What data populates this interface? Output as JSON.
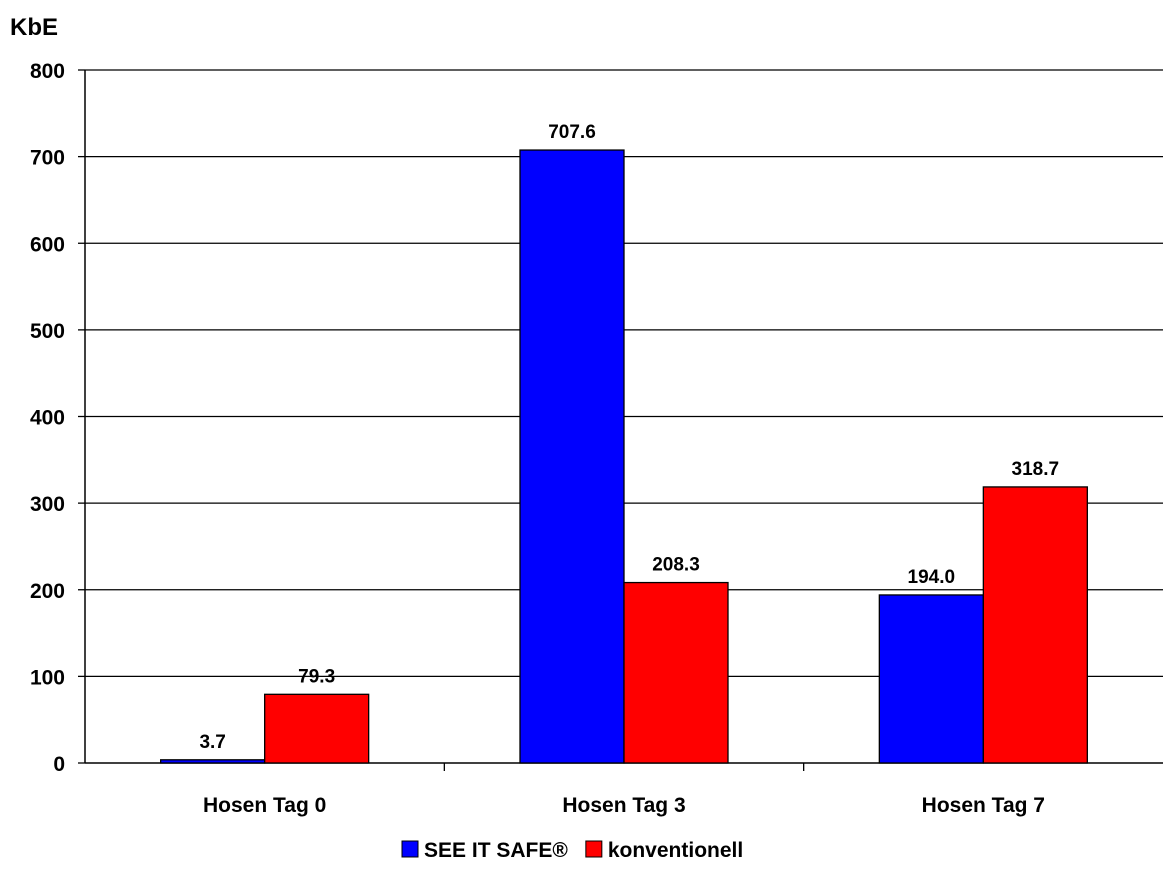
{
  "chart_data": {
    "type": "bar",
    "ylabel": "KbE",
    "categories": [
      "Hosen Tag 0",
      "Hosen Tag 3",
      "Hosen Tag 7"
    ],
    "series": [
      {
        "name": "SEE IT SAFE®",
        "values": [
          3.7,
          707.6,
          194.0
        ],
        "labels": [
          "3.7",
          "707.6",
          "194.0"
        ],
        "color": "#0000ff"
      },
      {
        "name": "konventionell",
        "values": [
          79.3,
          208.3,
          318.7
        ],
        "labels": [
          "79.3",
          "208.3",
          "318.7"
        ],
        "color": "#ff0000"
      }
    ],
    "ylim": [
      0,
      800
    ],
    "yticks": [
      0,
      100,
      200,
      300,
      400,
      500,
      600,
      700,
      800
    ],
    "grid": true,
    "legend": "bottom"
  }
}
